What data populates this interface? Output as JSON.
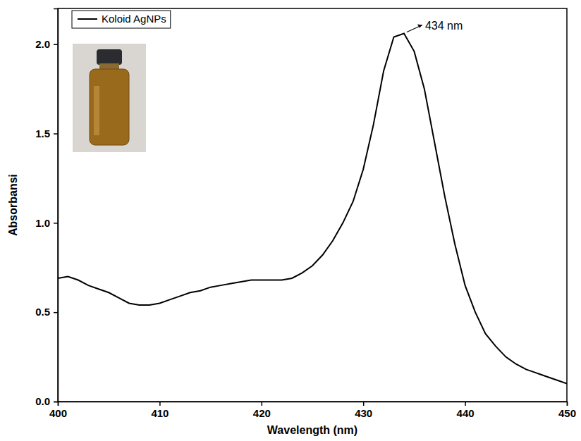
{
  "chart_data": {
    "type": "line",
    "x_label": "Wavelength (nm)",
    "y_label": "Absorbansi",
    "x": [
      400,
      401,
      402,
      403,
      404,
      405,
      406,
      407,
      408,
      409,
      410,
      411,
      412,
      413,
      414,
      415,
      416,
      417,
      418,
      419,
      420,
      421,
      422,
      423,
      424,
      425,
      426,
      427,
      428,
      429,
      430,
      431,
      432,
      433,
      434,
      435,
      436,
      437,
      438,
      439,
      440,
      441,
      442,
      443,
      444,
      445,
      446,
      447,
      448,
      449,
      450
    ],
    "series": [
      {
        "name": "Koloid AgNPs",
        "color": "#000000",
        "values": [
          0.69,
          0.7,
          0.68,
          0.65,
          0.63,
          0.61,
          0.58,
          0.55,
          0.54,
          0.54,
          0.55,
          0.57,
          0.59,
          0.61,
          0.62,
          0.64,
          0.65,
          0.66,
          0.67,
          0.68,
          0.68,
          0.68,
          0.68,
          0.69,
          0.72,
          0.76,
          0.82,
          0.9,
          1.0,
          1.12,
          1.3,
          1.55,
          1.85,
          2.04,
          2.06,
          1.96,
          1.75,
          1.45,
          1.15,
          0.88,
          0.65,
          0.5,
          0.38,
          0.31,
          0.25,
          0.21,
          0.18,
          0.16,
          0.14,
          0.12,
          0.1
        ]
      }
    ],
    "xlim": [
      400,
      450
    ],
    "xticks": [
      400,
      410,
      420,
      430,
      440,
      450
    ],
    "ylim": [
      0,
      2.2
    ],
    "yticks": [
      {
        "value": 0,
        "label": "0.0"
      },
      0.5,
      {
        "value": 1,
        "label": "1.0"
      },
      1.5,
      {
        "value": 2,
        "label": "2.0"
      }
    ],
    "legend": "upper left",
    "annotations": [
      {
        "text": "434 nm",
        "x": 434,
        "y": 2.06
      }
    ]
  }
}
